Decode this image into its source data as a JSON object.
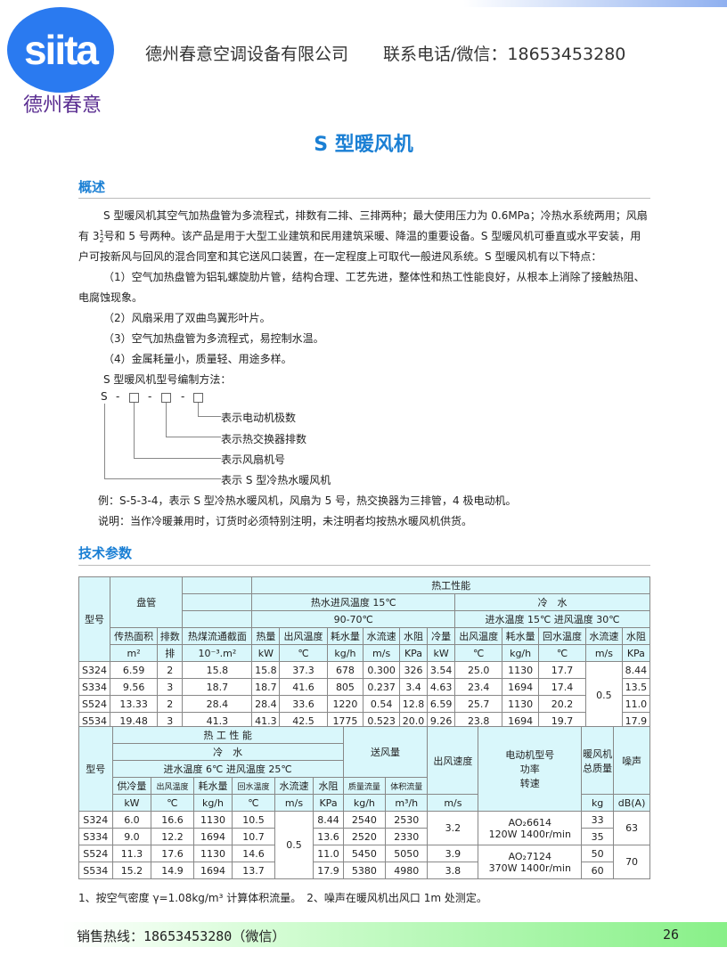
{
  "header": {
    "logo_text": "siita",
    "logo_cn": "德州春意",
    "company": "德州春意空调设备有限公司",
    "contact": "联系电话/微信：18653453280"
  },
  "title": "S 型暖风机",
  "overview": {
    "heading": "概述",
    "p1a": "S 型暖风机其空气加热盘管为多流程式，排数有二排、三排两种；最大使用压力为 0.6MPa；冷热水系统两用；风扇",
    "p1b_pre": "有 3",
    "frac_num": "1",
    "frac_den": "2",
    "p1b_post": "号和 5 号两种。该产品是用于大型工业建筑和民用建筑采暖、降温的重要设备。S 型暖风机可垂直或水平安装，用",
    "p1c": "户可按新风与回风的混合同室和其它送风口装置，在一定程度上可取代一般进风系统。S 型暖风机有以下特点：",
    "f1a": "（1）空气加热盘管为铝轧螺旋肋片管，结构合理、工艺先进，整体性和热工性能良好，从根本上消除了接触热阻、",
    "f1b": "电腐蚀现象。",
    "f2": "（2）风扇采用了双曲鸟翼形叶片。",
    "f3": "（3）空气加热盘管为多流程式，易控制水温。",
    "f4": "（4）金属耗量小，质量轻、用途多样。",
    "code_title": "S 型暖风机型号编制方法：",
    "diagram": {
      "s": "S",
      "dash": "-",
      "labels": [
        "表示电动机极数",
        "表示热交换器排数",
        "表示风扇机号",
        "表示 S 型冷热水暖风机"
      ]
    },
    "example": "例：S-5-3-4，表示 S 型冷热水暖风机，风扇为 5 号，热交换器为三排管，4 极电动机。",
    "note": "说明：当作冷暖兼用时，订货时必须特别注明，未注明者均按热水暖风机供货。"
  },
  "tech": {
    "heading": "技术参数"
  },
  "table1": {
    "model": "型号",
    "coil": "盘管",
    "thermal": "热工性能",
    "hot": "热水进风温度 15℃",
    "hot_temp": "90-70℃",
    "cold": "冷　水",
    "cold_cond": "进水温度 15℃  进风温度 30℃",
    "cols": [
      "传热面积",
      "排数",
      "热煤流通截面",
      "热量",
      "出风温度",
      "耗水量",
      "水流速",
      "水阻",
      "冷量",
      "出风温度",
      "耗水量",
      "回水温度",
      "水流速",
      "水阻"
    ],
    "units": [
      "m²",
      "排",
      "10⁻³.m²",
      "kW",
      "℃",
      "kg/h",
      "m/s",
      "KPa",
      "kW",
      "℃",
      "kg/h",
      "℃",
      "m/s",
      "KPa"
    ],
    "rows": [
      [
        "S324",
        "6.59",
        "2",
        "15.8",
        "15.8",
        "37.3",
        "678",
        "0.300",
        "326",
        "3.54",
        "25.0",
        "1130",
        "17.7",
        "8.44"
      ],
      [
        "S334",
        "9.56",
        "3",
        "18.7",
        "18.7",
        "41.6",
        "805",
        "0.237",
        "3.4",
        "4.63",
        "23.4",
        "1694",
        "17.4",
        "13.5"
      ],
      [
        "S524",
        "13.33",
        "2",
        "28.4",
        "28.4",
        "33.6",
        "1220",
        "0.54",
        "12.8",
        "6.59",
        "25.7",
        "1130",
        "20.2",
        "11.0"
      ],
      [
        "S534",
        "19.48",
        "3",
        "41.3",
        "41.3",
        "42.5",
        "1775",
        "0.523",
        "20.0",
        "9.26",
        "23.8",
        "1694",
        "19.7",
        "17.9"
      ]
    ],
    "cold_speed": "0.5"
  },
  "table2": {
    "model": "型号",
    "thermal": "热 工 性 能",
    "cold": "冷　水",
    "cond": "进水温度 6℃  进风温度 25℃",
    "airflow": "送风量",
    "outlet": "出风速度",
    "motor": [
      "电动机型号",
      "功率",
      "转速"
    ],
    "mass": "暖风机总质量",
    "noise": "噪声",
    "cols": [
      "供冷量",
      "出风温度",
      "耗水量",
      "回水温度",
      "水流速",
      "水阻",
      "质量流量",
      "体积流量"
    ],
    "units": [
      "kW",
      "℃",
      "kg/h",
      "℃",
      "m/s",
      "KPa",
      "kg/h",
      "m³/h",
      "m/s",
      "kg",
      "dB(A)"
    ],
    "rows": [
      [
        "S324",
        "6.0",
        "16.6",
        "1130",
        "10.5",
        "8.44",
        "2540",
        "2530",
        "33"
      ],
      [
        "S334",
        "9.0",
        "12.2",
        "1694",
        "10.7",
        "13.6",
        "2520",
        "2330",
        "35"
      ],
      [
        "S524",
        "11.3",
        "17.6",
        "1130",
        "14.6",
        "11.0",
        "5450",
        "5050",
        "50"
      ],
      [
        "S534",
        "15.2",
        "14.9",
        "1694",
        "13.7",
        "17.9",
        "5380",
        "4980",
        "60"
      ]
    ],
    "speed": "0.5",
    "outlet_vals": [
      "3.2",
      "3.9",
      "3.8"
    ],
    "motors": [
      {
        "model": "AO₂6614",
        "spec": "120W  1400r/min"
      },
      {
        "model": "AO₂7124",
        "spec": "370W  1400r/min"
      }
    ],
    "noise_vals": [
      "63",
      "70"
    ]
  },
  "notes": "1、按空气密度 γ=1.08kg/m³ 计算体积流量。　2、噪声在暖风机出风口 1m 处测定。",
  "footer": {
    "hotline": "销售热线：18653453280（微信）",
    "page": "26"
  }
}
